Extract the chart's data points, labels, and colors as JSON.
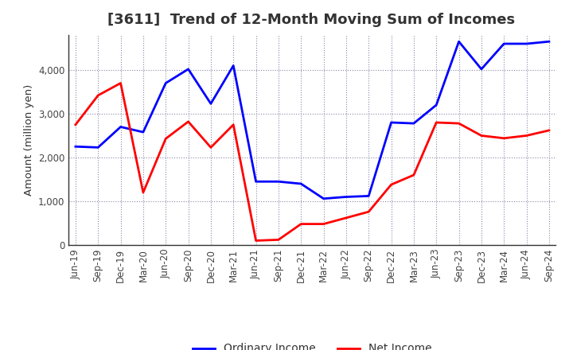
{
  "title": "[3611]  Trend of 12-Month Moving Sum of Incomes",
  "ylabel": "Amount (million yen)",
  "background_color": "#ffffff",
  "grid_color": "#8888aa",
  "x_labels": [
    "Jun-19",
    "Sep-19",
    "Dec-19",
    "Mar-20",
    "Jun-20",
    "Sep-20",
    "Dec-20",
    "Mar-21",
    "Jun-21",
    "Sep-21",
    "Dec-21",
    "Mar-22",
    "Jun-22",
    "Sep-22",
    "Dec-22",
    "Mar-23",
    "Jun-23",
    "Sep-23",
    "Dec-23",
    "Mar-24",
    "Jun-24",
    "Sep-24"
  ],
  "ordinary_income": [
    2250,
    2230,
    2700,
    2580,
    3700,
    4020,
    3230,
    4100,
    1450,
    1450,
    1400,
    1060,
    1100,
    1120,
    2800,
    2780,
    3200,
    4650,
    4020,
    4600,
    4600,
    4650
  ],
  "net_income": [
    2750,
    3420,
    3700,
    1200,
    2430,
    2820,
    2230,
    2750,
    100,
    120,
    480,
    480,
    620,
    760,
    1380,
    1600,
    2800,
    2780,
    2500,
    2440,
    2500,
    2620
  ],
  "ordinary_color": "#0000ff",
  "net_color": "#ff0000",
  "ylim": [
    0,
    4800
  ],
  "yticks": [
    0,
    1000,
    2000,
    3000,
    4000
  ],
  "line_width": 2.0,
  "title_fontsize": 13,
  "legend_fontsize": 10,
  "tick_fontsize": 8.5,
  "ylabel_fontsize": 9.5
}
